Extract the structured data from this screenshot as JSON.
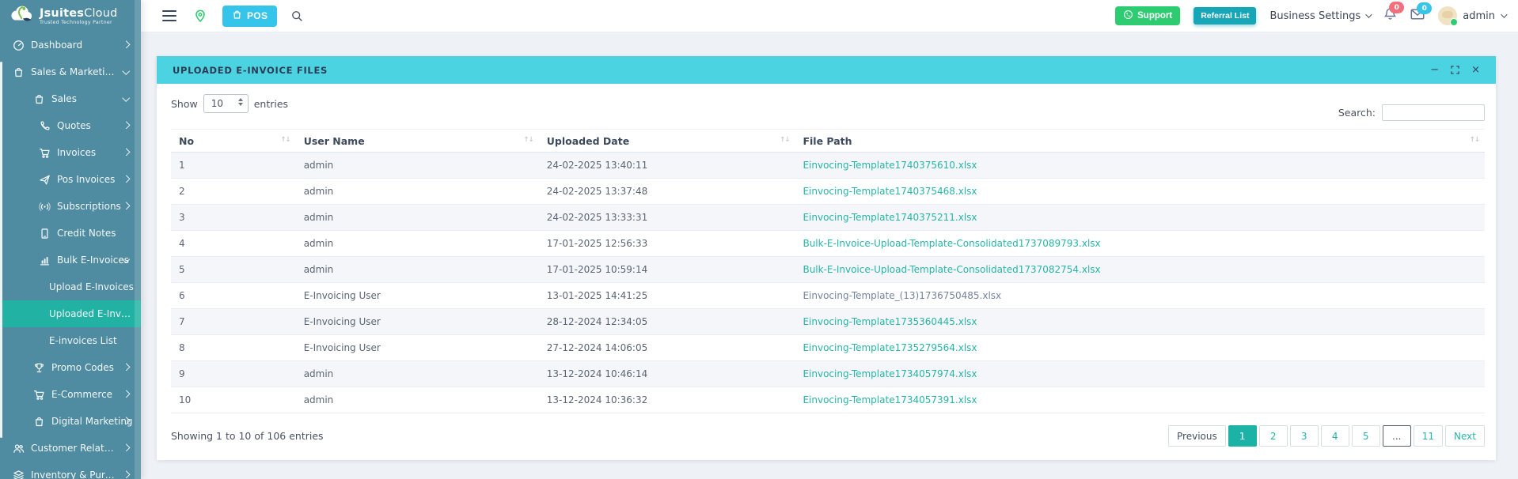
{
  "colors": {
    "sidebar": "#4f8ba1",
    "sidebar_active": "#21b2a3",
    "panel_header": "#4cd3e2",
    "pos": "#35c5ea",
    "support": "#2ecc71",
    "referral": "#16a6b8",
    "link": "#27b5a7",
    "pagination_active": "#1cb2a6",
    "badge_red": "#f2707c",
    "badge_cyan": "#38c3e8"
  },
  "brand": {
    "name_bold": "Jsuites",
    "name_light": "Cloud",
    "tagline": "Trusted Technology Partner"
  },
  "header": {
    "pos_label": "POS",
    "support_label": "Support",
    "referral_label": "Referral List",
    "business_settings_label": "Business Settings",
    "notification_badge": "0",
    "mail_badge": "0",
    "user_name": "admin"
  },
  "sidebar": {
    "items": [
      {
        "label": "Dashboard",
        "icon": "dashboard-icon",
        "level": 0,
        "chevron": "right",
        "active": false
      },
      {
        "label": "Sales & Marketing",
        "icon": "bag-icon",
        "level": 0,
        "chevron": "down",
        "active": false
      },
      {
        "label": "Sales",
        "icon": "bag-icon",
        "level": 1,
        "chevron": "down",
        "active": false
      },
      {
        "label": "Quotes",
        "icon": "phone-icon",
        "level": 2,
        "chevron": "right",
        "active": false
      },
      {
        "label": "Invoices",
        "icon": "cart-icon",
        "level": 2,
        "chevron": "right",
        "active": false
      },
      {
        "label": "Pos Invoices",
        "icon": "send-icon",
        "level": 2,
        "chevron": "right",
        "active": false
      },
      {
        "label": "Subscriptions",
        "icon": "broadcast-icon",
        "level": 2,
        "chevron": "right",
        "active": false
      },
      {
        "label": "Credit Notes",
        "icon": "note-icon",
        "level": 2,
        "chevron": "",
        "active": false
      },
      {
        "label": "Bulk E-Invoices",
        "icon": "chart-icon",
        "level": 2,
        "chevron": "down",
        "active": false
      },
      {
        "label": "Upload E-Invoices",
        "icon": "",
        "level": 3,
        "chevron": "",
        "active": false
      },
      {
        "label": "Uploaded E-Invoic...",
        "icon": "",
        "level": 3,
        "chevron": "",
        "active": true
      },
      {
        "label": "E-invoices List",
        "icon": "",
        "level": 3,
        "chevron": "",
        "active": false
      },
      {
        "label": "Promo Codes",
        "icon": "trophy-icon",
        "level": 1,
        "chevron": "right",
        "active": false
      },
      {
        "label": "E-Commerce",
        "icon": "cart-icon",
        "level": 1,
        "chevron": "right",
        "active": false
      },
      {
        "label": "Digital Marketing",
        "icon": "bag-icon",
        "level": 1,
        "chevron": "right",
        "active": false
      },
      {
        "label": "Customer Relationshi...",
        "icon": "people-icon",
        "level": 0,
        "chevron": "right",
        "active": false
      },
      {
        "label": "Inventory & Purchasi...",
        "icon": "layers-icon",
        "level": 0,
        "chevron": "right",
        "active": false
      }
    ]
  },
  "panel": {
    "title": "UPLOADED E-INVOICE FILES",
    "show_label": "Show",
    "entries_label": "entries",
    "page_length": "10",
    "search_label": "Search:",
    "search_value": "",
    "table": {
      "columns": [
        "No",
        "User Name",
        "Uploaded Date",
        "File Path"
      ],
      "rows": [
        {
          "no": "1",
          "user": "admin",
          "date": "24-02-2025 13:40:11",
          "file": "Einvocing-Template1740375610.xlsx",
          "muted": false
        },
        {
          "no": "2",
          "user": "admin",
          "date": "24-02-2025 13:37:48",
          "file": "Einvocing-Template1740375468.xlsx",
          "muted": false
        },
        {
          "no": "3",
          "user": "admin",
          "date": "24-02-2025 13:33:31",
          "file": "Einvocing-Template1740375211.xlsx",
          "muted": false
        },
        {
          "no": "4",
          "user": "admin",
          "date": "17-01-2025 12:56:33",
          "file": "Bulk-E-Invoice-Upload-Template-Consolidated1737089793.xlsx",
          "muted": false
        },
        {
          "no": "5",
          "user": "admin",
          "date": "17-01-2025 10:59:14",
          "file": "Bulk-E-Invoice-Upload-Template-Consolidated1737082754.xlsx",
          "muted": false
        },
        {
          "no": "6",
          "user": "E-Invoicing User",
          "date": "13-01-2025 14:41:25",
          "file": "Einvocing-Template_(13)1736750485.xlsx",
          "muted": true
        },
        {
          "no": "7",
          "user": "E-Invoicing User",
          "date": "28-12-2024 12:34:05",
          "file": "Einvocing-Template1735360445.xlsx",
          "muted": false
        },
        {
          "no": "8",
          "user": "E-Invoicing User",
          "date": "27-12-2024 14:06:05",
          "file": "Einvocing-Template1735279564.xlsx",
          "muted": false
        },
        {
          "no": "9",
          "user": "admin",
          "date": "13-12-2024 10:46:14",
          "file": "Einvocing-Template1734057974.xlsx",
          "muted": false
        },
        {
          "no": "10",
          "user": "admin",
          "date": "13-12-2024 10:36:32",
          "file": "Einvocing-Template1734057391.xlsx",
          "muted": false
        }
      ]
    },
    "footer_text": "Showing 1 to 10 of 106 entries",
    "pagination": [
      {
        "label": "Previous",
        "type": "prev",
        "active": false
      },
      {
        "label": "1",
        "type": "page",
        "active": true
      },
      {
        "label": "2",
        "type": "page",
        "active": false
      },
      {
        "label": "3",
        "type": "page",
        "active": false
      },
      {
        "label": "4",
        "type": "page",
        "active": false
      },
      {
        "label": "5",
        "type": "page",
        "active": false
      },
      {
        "label": "...",
        "type": "ellipsis",
        "active": false
      },
      {
        "label": "11",
        "type": "page",
        "active": false
      },
      {
        "label": "Next",
        "type": "next",
        "active": false
      }
    ]
  }
}
